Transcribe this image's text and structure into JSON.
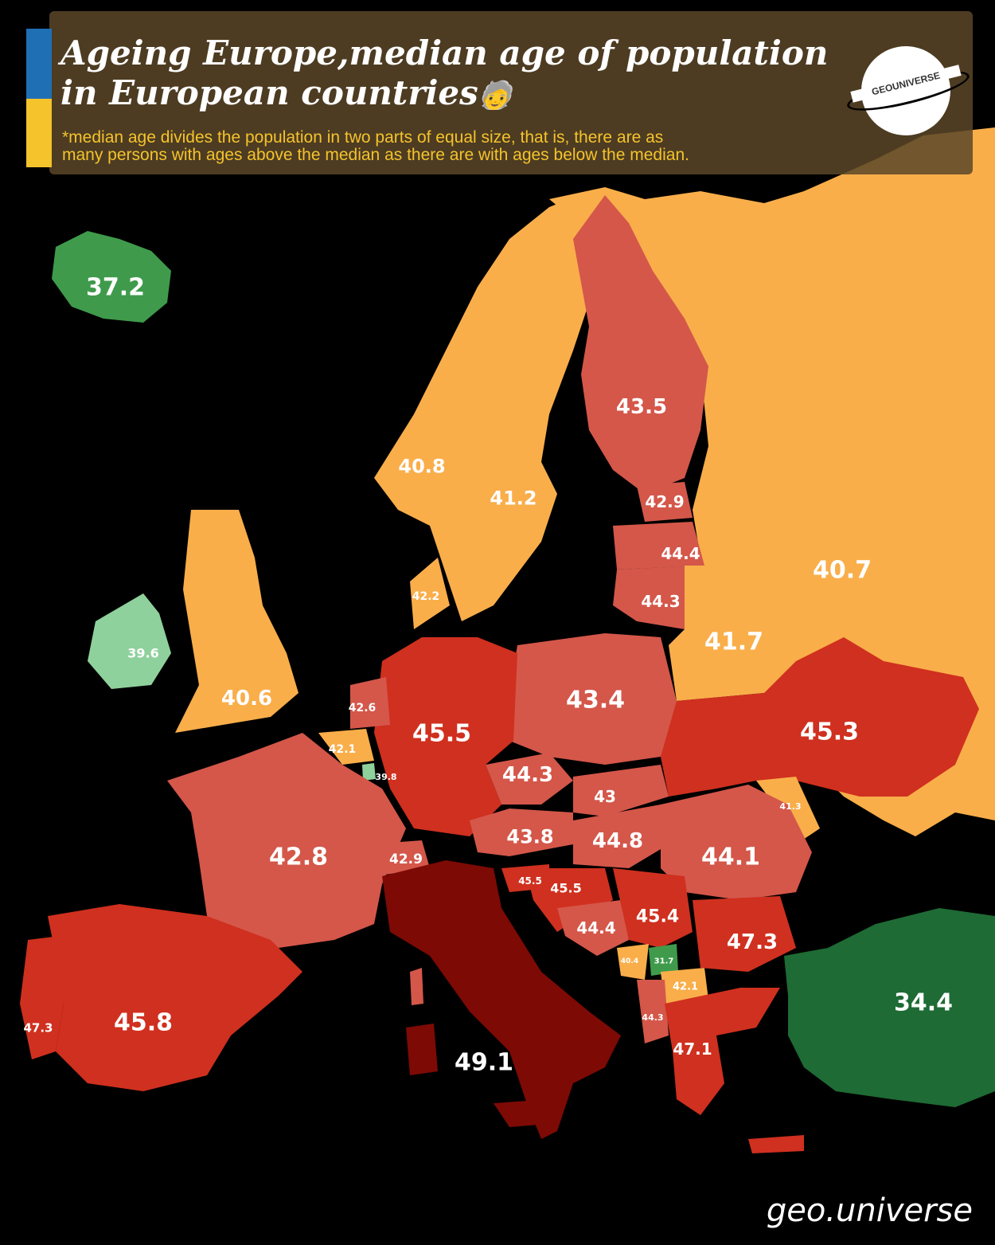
{
  "header": {
    "title_line1": "Ageing Europe,median age of population",
    "title_line2": "in European countries",
    "title_emoji": "🧓",
    "subtitle_line1": "*median age divides the population in two parts of equal size, that is, there are as",
    "subtitle_line2": "many persons with ages above the median as there are with ages below the median.",
    "logo_text": "GEOUNIVERSE"
  },
  "watermark": "geo.universe",
  "colors": {
    "sea": "#000000",
    "orange": "#f9ae4a",
    "salmon": "#d4574a",
    "red": "#d0301f",
    "darkred": "#7d0a05",
    "lightgreen": "#8fd19c",
    "green": "#3f9b4b",
    "darkgreen": "#1e6b35",
    "header_bg": "#5a4628",
    "flag_blue": "#1f6fb5",
    "flag_yellow": "#f5c32c"
  },
  "labels": [
    {
      "value": "37.2"
    },
    {
      "value": "43.5"
    },
    {
      "value": "40.8"
    },
    {
      "value": "41.2"
    },
    {
      "value": "42.9"
    },
    {
      "value": "44.4"
    },
    {
      "value": "40.7"
    },
    {
      "value": "42.2"
    },
    {
      "value": "44.3"
    },
    {
      "value": "39.6"
    },
    {
      "value": "41.7"
    },
    {
      "value": "40.6"
    },
    {
      "value": "43.4"
    },
    {
      "value": "42.6"
    },
    {
      "value": "45.5"
    },
    {
      "value": "45.3"
    },
    {
      "value": "42.1"
    },
    {
      "value": "39.8"
    },
    {
      "value": "44.3"
    },
    {
      "value": "43"
    },
    {
      "value": "41.3"
    },
    {
      "value": "42.8"
    },
    {
      "value": "43.8"
    },
    {
      "value": "44.8"
    },
    {
      "value": "44.1"
    },
    {
      "value": "42.9"
    },
    {
      "value": "45.5"
    },
    {
      "value": "45.5"
    },
    {
      "value": "45.4"
    },
    {
      "value": "44.4"
    },
    {
      "value": "47.3"
    },
    {
      "value": "40.4"
    },
    {
      "value": "31.7"
    },
    {
      "value": "42.1"
    },
    {
      "value": "34.4"
    },
    {
      "value": "47.3"
    },
    {
      "value": "45.8"
    },
    {
      "value": "44.3"
    },
    {
      "value": "47.1"
    },
    {
      "value": "49.1"
    }
  ]
}
